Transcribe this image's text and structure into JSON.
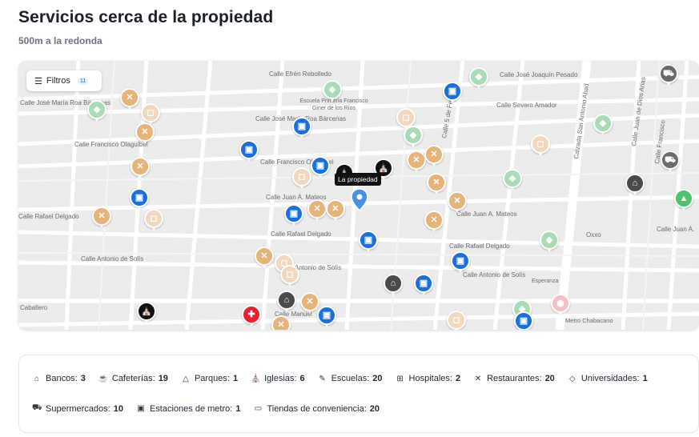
{
  "header": {
    "title": "Servicios cerca de la propiedad",
    "subtitle": "500m a la redonda"
  },
  "map": {
    "filter_label": "Filtros",
    "filter_count": "11",
    "property_label": "La propiedad",
    "streets": [
      "Calle Efrén Rebolledo",
      "Calle José Joaquín Pesado",
      "Calle José María Roa Bárcenas",
      "Escuela Primaria Francisco Giner de los Ríos",
      "Calle José María Roa Bárcenas",
      "Calle Severo Amador",
      "Calle Francisco Olaguíbel",
      "Calle Francisco Olaguíbel",
      "Calle Juan A. Mateos",
      "Calle 5 de Febrero",
      "Calzada San Antonio Abad",
      "Calle Juan de Dios Arias",
      "Calle Rafael Delgado",
      "Calle Juan A. Mateos",
      "Calle Rafael Delgado",
      "Calle Rafael Delgado",
      "Calle Antonio de Solís",
      "Antonio de Solís",
      "Calle Antonio de Solís",
      "Oxxo",
      "Esperanza",
      "Caballero",
      "Calle Manuel",
      "Metro Chabacano",
      "Calle Juan A.",
      "Calle Francisco"
    ]
  },
  "legend": [
    {
      "icon": "bank-icon",
      "label": "Bancos:",
      "count": "3"
    },
    {
      "icon": "coffee-icon",
      "label": "Cafeterías:",
      "count": "19"
    },
    {
      "icon": "tree-icon",
      "label": "Parques:",
      "count": "1"
    },
    {
      "icon": "church-icon",
      "label": "Iglesias:",
      "count": "6"
    },
    {
      "icon": "school-icon",
      "label": "Escuelas:",
      "count": "20"
    },
    {
      "icon": "hospital-icon",
      "label": "Hospitales:",
      "count": "2"
    },
    {
      "icon": "restaurant-icon",
      "label": "Restaurantes:",
      "count": "20"
    },
    {
      "icon": "university-icon",
      "label": "Universidades:",
      "count": "1"
    },
    {
      "icon": "cart-icon",
      "label": "Supermercados:",
      "count": "10"
    },
    {
      "icon": "metro-icon",
      "label": "Estaciones de metro:",
      "count": "1"
    },
    {
      "icon": "store-icon",
      "label": "Tiendas de conveniencia:",
      "count": "20"
    }
  ],
  "colors": {
    "restaurant": "#e6b378",
    "cafe": "#f1d8bd",
    "school": "#a9dcb5",
    "metro": "#1a6fe0",
    "bank": "#4a4a4a",
    "church": "#111111",
    "hospital": "#e8202e",
    "park": "#4cc46d",
    "property": "#4a8fe7"
  }
}
